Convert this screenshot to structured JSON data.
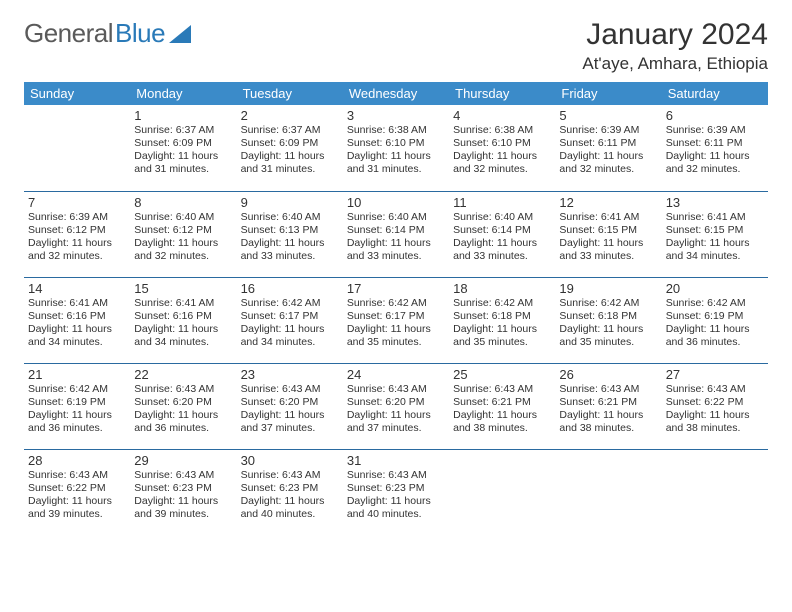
{
  "brand": {
    "part1": "General",
    "part2": "Blue"
  },
  "title": "January 2024",
  "location": "At'aye, Amhara, Ethiopia",
  "colors": {
    "header_bg": "#3b8bc9",
    "header_text": "#ffffff",
    "row_border": "#2a6aa0",
    "text": "#333333",
    "brand_gray": "#5a5a5a",
    "brand_blue": "#2a7ab8",
    "page_bg": "#ffffff"
  },
  "day_headers": [
    "Sunday",
    "Monday",
    "Tuesday",
    "Wednesday",
    "Thursday",
    "Friday",
    "Saturday"
  ],
  "weeks": [
    [
      null,
      {
        "n": "1",
        "sr": "6:37 AM",
        "ss": "6:09 PM",
        "dl": "11 hours and 31 minutes."
      },
      {
        "n": "2",
        "sr": "6:37 AM",
        "ss": "6:09 PM",
        "dl": "11 hours and 31 minutes."
      },
      {
        "n": "3",
        "sr": "6:38 AM",
        "ss": "6:10 PM",
        "dl": "11 hours and 31 minutes."
      },
      {
        "n": "4",
        "sr": "6:38 AM",
        "ss": "6:10 PM",
        "dl": "11 hours and 32 minutes."
      },
      {
        "n": "5",
        "sr": "6:39 AM",
        "ss": "6:11 PM",
        "dl": "11 hours and 32 minutes."
      },
      {
        "n": "6",
        "sr": "6:39 AM",
        "ss": "6:11 PM",
        "dl": "11 hours and 32 minutes."
      }
    ],
    [
      {
        "n": "7",
        "sr": "6:39 AM",
        "ss": "6:12 PM",
        "dl": "11 hours and 32 minutes."
      },
      {
        "n": "8",
        "sr": "6:40 AM",
        "ss": "6:12 PM",
        "dl": "11 hours and 32 minutes."
      },
      {
        "n": "9",
        "sr": "6:40 AM",
        "ss": "6:13 PM",
        "dl": "11 hours and 33 minutes."
      },
      {
        "n": "10",
        "sr": "6:40 AM",
        "ss": "6:14 PM",
        "dl": "11 hours and 33 minutes."
      },
      {
        "n": "11",
        "sr": "6:40 AM",
        "ss": "6:14 PM",
        "dl": "11 hours and 33 minutes."
      },
      {
        "n": "12",
        "sr": "6:41 AM",
        "ss": "6:15 PM",
        "dl": "11 hours and 33 minutes."
      },
      {
        "n": "13",
        "sr": "6:41 AM",
        "ss": "6:15 PM",
        "dl": "11 hours and 34 minutes."
      }
    ],
    [
      {
        "n": "14",
        "sr": "6:41 AM",
        "ss": "6:16 PM",
        "dl": "11 hours and 34 minutes."
      },
      {
        "n": "15",
        "sr": "6:41 AM",
        "ss": "6:16 PM",
        "dl": "11 hours and 34 minutes."
      },
      {
        "n": "16",
        "sr": "6:42 AM",
        "ss": "6:17 PM",
        "dl": "11 hours and 34 minutes."
      },
      {
        "n": "17",
        "sr": "6:42 AM",
        "ss": "6:17 PM",
        "dl": "11 hours and 35 minutes."
      },
      {
        "n": "18",
        "sr": "6:42 AM",
        "ss": "6:18 PM",
        "dl": "11 hours and 35 minutes."
      },
      {
        "n": "19",
        "sr": "6:42 AM",
        "ss": "6:18 PM",
        "dl": "11 hours and 35 minutes."
      },
      {
        "n": "20",
        "sr": "6:42 AM",
        "ss": "6:19 PM",
        "dl": "11 hours and 36 minutes."
      }
    ],
    [
      {
        "n": "21",
        "sr": "6:42 AM",
        "ss": "6:19 PM",
        "dl": "11 hours and 36 minutes."
      },
      {
        "n": "22",
        "sr": "6:43 AM",
        "ss": "6:20 PM",
        "dl": "11 hours and 36 minutes."
      },
      {
        "n": "23",
        "sr": "6:43 AM",
        "ss": "6:20 PM",
        "dl": "11 hours and 37 minutes."
      },
      {
        "n": "24",
        "sr": "6:43 AM",
        "ss": "6:20 PM",
        "dl": "11 hours and 37 minutes."
      },
      {
        "n": "25",
        "sr": "6:43 AM",
        "ss": "6:21 PM",
        "dl": "11 hours and 38 minutes."
      },
      {
        "n": "26",
        "sr": "6:43 AM",
        "ss": "6:21 PM",
        "dl": "11 hours and 38 minutes."
      },
      {
        "n": "27",
        "sr": "6:43 AM",
        "ss": "6:22 PM",
        "dl": "11 hours and 38 minutes."
      }
    ],
    [
      {
        "n": "28",
        "sr": "6:43 AM",
        "ss": "6:22 PM",
        "dl": "11 hours and 39 minutes."
      },
      {
        "n": "29",
        "sr": "6:43 AM",
        "ss": "6:23 PM",
        "dl": "11 hours and 39 minutes."
      },
      {
        "n": "30",
        "sr": "6:43 AM",
        "ss": "6:23 PM",
        "dl": "11 hours and 40 minutes."
      },
      {
        "n": "31",
        "sr": "6:43 AM",
        "ss": "6:23 PM",
        "dl": "11 hours and 40 minutes."
      },
      null,
      null,
      null
    ]
  ],
  "labels": {
    "sunrise": "Sunrise:",
    "sunset": "Sunset:",
    "daylight": "Daylight:"
  }
}
